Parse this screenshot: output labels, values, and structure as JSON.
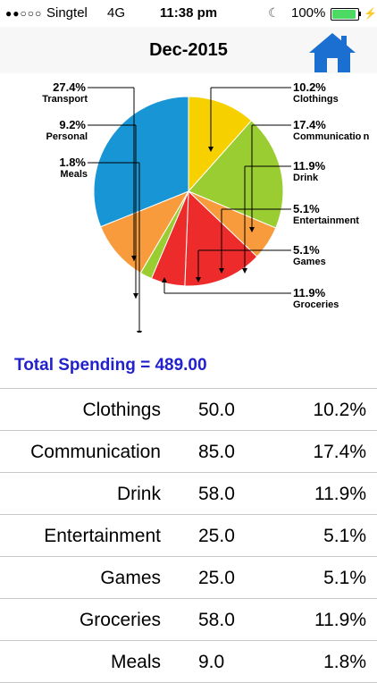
{
  "status_bar": {
    "signal": "●●○○○",
    "carrier": "Singtel",
    "network": "4G",
    "time": "11:38 pm",
    "battery": "100%"
  },
  "nav": {
    "title": "Dec-2015",
    "home_icon": "home-icon"
  },
  "colors": {
    "accent": "#2222cc",
    "home_icon": "#1a6fd1",
    "Clothings": "#f7d000",
    "Communication": "#9acd32",
    "Drink": "#9acd32",
    "Entertainment": "#f89b3c",
    "Games": "#ee2b2b",
    "Groceries": "#ee2b2b",
    "Meals": "#9acd32",
    "Personal": "#f89b3c",
    "Transport": "#1895d4",
    "Other": "#16e8f5"
  },
  "chart_data": {
    "type": "pie",
    "slices": [
      {
        "label": "Clothings",
        "percent": 10.2,
        "pct_label": "10.2%"
      },
      {
        "label": "Communication",
        "percent": 17.4,
        "pct_label": "17.4%"
      },
      {
        "label": "Drink",
        "percent": 11.9,
        "pct_label": "11.9%"
      },
      {
        "label": "Entertainment",
        "percent": 5.1,
        "pct_label": "5.1%"
      },
      {
        "label": "Games",
        "percent": 5.1,
        "pct_label": "5.1%"
      },
      {
        "label": "Groceries",
        "percent": 11.9,
        "pct_label": "11.9%"
      },
      {
        "label": "Meals",
        "percent": 1.8,
        "pct_label": "1.8%"
      },
      {
        "label": "Personal",
        "percent": 9.2,
        "pct_label": "9.2%"
      },
      {
        "label": "Transport",
        "percent": 27.4,
        "pct_label": "27.4%"
      }
    ]
  },
  "total": {
    "label": "Total  Spending = 489.00"
  },
  "table": {
    "rows": [
      {
        "category": "Clothings",
        "amount": "50.0",
        "percent": "10.2%"
      },
      {
        "category": "Communication",
        "amount": "85.0",
        "percent": "17.4%"
      },
      {
        "category": "Drink",
        "amount": "58.0",
        "percent": "11.9%"
      },
      {
        "category": "Entertainment",
        "amount": "25.0",
        "percent": "5.1%"
      },
      {
        "category": "Games",
        "amount": "25.0",
        "percent": "5.1%"
      },
      {
        "category": "Groceries",
        "amount": "58.0",
        "percent": "11.9%"
      },
      {
        "category": "Meals",
        "amount": "9.0",
        "percent": "1.8%"
      }
    ]
  }
}
